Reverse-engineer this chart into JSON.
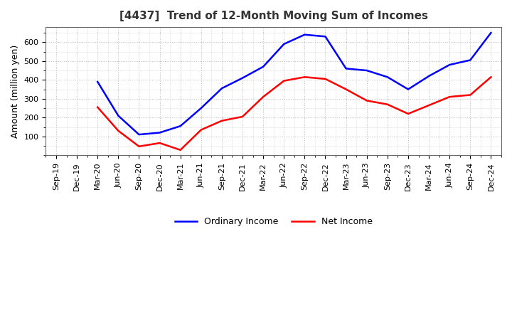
{
  "title": "[4437]  Trend of 12-Month Moving Sum of Incomes",
  "ylabel": "Amount (million yen)",
  "ordinary_income": {
    "values": [
      null,
      null,
      390,
      210,
      110,
      120,
      155,
      250,
      355,
      410,
      470,
      590,
      640,
      630,
      460,
      450,
      415,
      350,
      420,
      480,
      505,
      650
    ]
  },
  "net_income": {
    "values": [
      null,
      null,
      255,
      130,
      47,
      65,
      28,
      135,
      183,
      205,
      310,
      395,
      415,
      405,
      350,
      290,
      270,
      220,
      265,
      310,
      320,
      415
    ]
  },
  "ordinary_income_color": "#0000FF",
  "net_income_color": "#FF0000",
  "background_color": "#FFFFFF",
  "grid_color": "#BBBBBB",
  "ylim": [
    0,
    680
  ],
  "yticks": [
    100,
    200,
    300,
    400,
    500,
    600
  ],
  "x_tick_labels": [
    "Sep-19",
    "Dec-19",
    "Mar-20",
    "Jun-20",
    "Sep-20",
    "Dec-20",
    "Mar-21",
    "Jun-21",
    "Sep-21",
    "Dec-21",
    "Mar-22",
    "Jun-22",
    "Sep-22",
    "Dec-22",
    "Mar-23",
    "Jun-23",
    "Sep-23",
    "Dec-23",
    "Mar-24",
    "Jun-24",
    "Sep-24",
    "Dec-24"
  ],
  "legend_labels": [
    "Ordinary Income",
    "Net Income"
  ],
  "line_width": 1.8,
  "title_color": "#333333",
  "title_fontsize": 11,
  "tick_fontsize": 8,
  "ylabel_fontsize": 9
}
